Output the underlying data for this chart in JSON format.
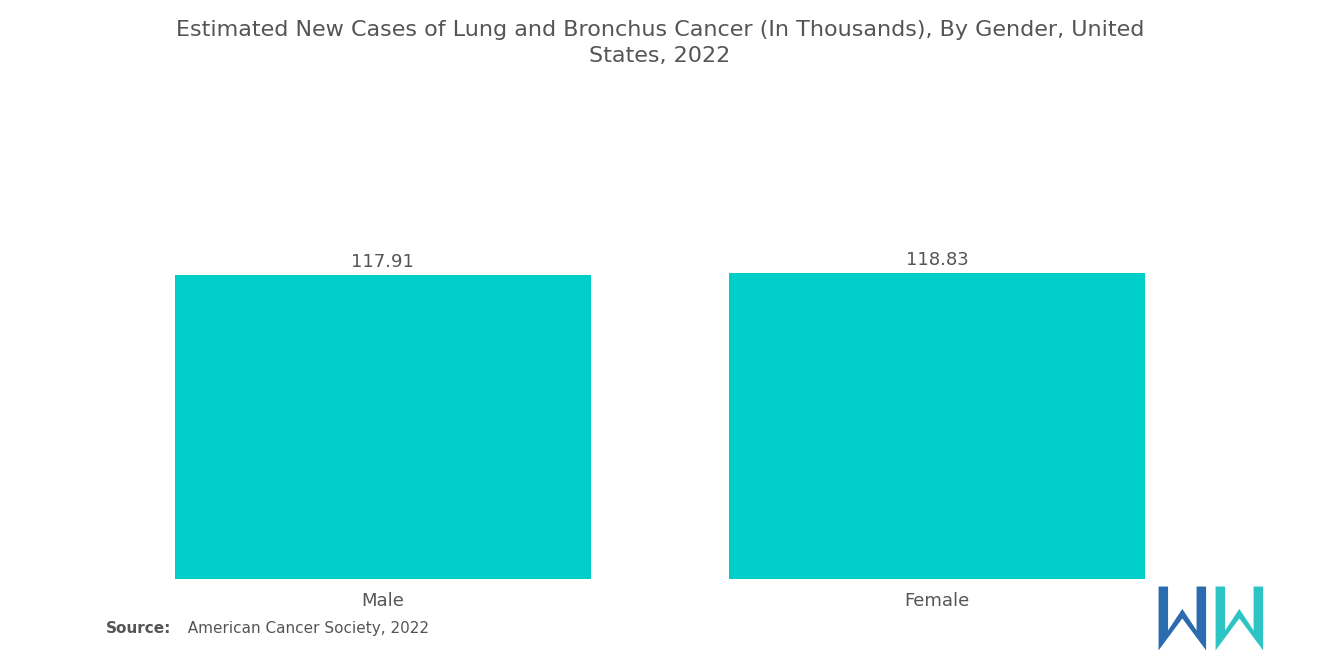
{
  "title": "Estimated New Cases of Lung and Bronchus Cancer (In Thousands), By Gender, United\nStates, 2022",
  "categories": [
    "Male",
    "Female"
  ],
  "values": [
    117.91,
    118.83
  ],
  "bar_color": "#00CEC9",
  "value_labels": [
    "117.91",
    "118.83"
  ],
  "background_color": "#ffffff",
  "text_color": "#555555",
  "title_fontsize": 16,
  "label_fontsize": 13,
  "value_fontsize": 13,
  "source_bold": "Source:",
  "source_rest": "  American Cancer Society, 2022",
  "ylim": [
    0,
    155
  ],
  "bar_positions": [
    1.0,
    3.0
  ],
  "bar_width": 1.5,
  "xlim": [
    0.0,
    4.0
  ],
  "logo_blue": "#2B6CB0",
  "logo_teal": "#2EC4C4"
}
